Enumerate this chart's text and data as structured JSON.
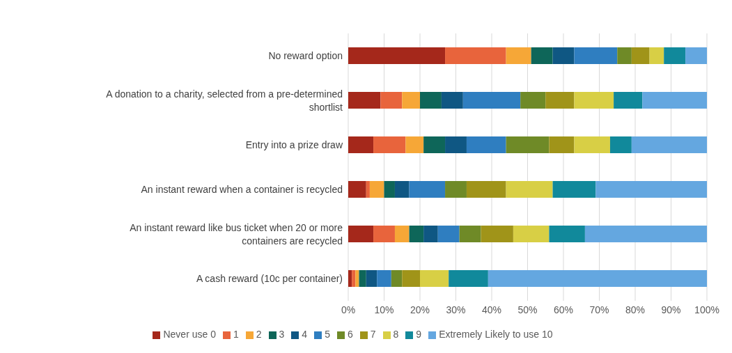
{
  "chart_data": {
    "type": "bar",
    "orientation": "horizontal",
    "stacked": true,
    "categories": [
      "No reward option",
      "A donation to a charity, selected from a pre-determined shortlist",
      "Entry into a prize draw",
      "An instant reward when a container is recycled",
      "An instant reward like bus ticket when 20 or more containers are recycled",
      "A cash reward (10c per container)"
    ],
    "series": [
      {
        "name": "Never use 0",
        "color": "#a5281b",
        "values": [
          27,
          9,
          7,
          5,
          7,
          1
        ]
      },
      {
        "name": "1",
        "color": "#e8643c",
        "values": [
          17,
          6,
          9,
          1,
          6,
          1
        ]
      },
      {
        "name": "2",
        "color": "#f6a737",
        "values": [
          7,
          5,
          5,
          4,
          4,
          1
        ]
      },
      {
        "name": "3",
        "color": "#0e6659",
        "values": [
          6,
          6,
          6,
          3,
          4,
          2
        ]
      },
      {
        "name": "4",
        "color": "#0f5783",
        "values": [
          6,
          6,
          6,
          4,
          4,
          3
        ]
      },
      {
        "name": "5",
        "color": "#2f7ec0",
        "values": [
          12,
          16,
          11,
          10,
          6,
          4
        ]
      },
      {
        "name": "6",
        "color": "#6f8a27",
        "values": [
          4,
          7,
          12,
          6,
          6,
          3
        ]
      },
      {
        "name": "7",
        "color": "#a09419",
        "values": [
          5,
          8,
          7,
          11,
          9,
          5
        ]
      },
      {
        "name": "8",
        "color": "#d8cf45",
        "values": [
          4,
          11,
          10,
          13,
          10,
          8
        ]
      },
      {
        "name": "9",
        "color": "#11899b",
        "values": [
          6,
          8,
          6,
          12,
          10,
          11
        ]
      },
      {
        "name": "Extremely Likely to use 10",
        "color": "#64a7e0",
        "values": [
          6,
          18,
          21,
          31,
          34,
          61
        ]
      }
    ],
    "xlim": [
      0,
      100
    ],
    "xticks": [
      {
        "value": 0,
        "label": "0%"
      },
      {
        "value": 10,
        "label": "10%"
      },
      {
        "value": 20,
        "label": "20%"
      },
      {
        "value": 30,
        "label": "30%"
      },
      {
        "value": 40,
        "label": "40%"
      },
      {
        "value": 50,
        "label": "50%"
      },
      {
        "value": 60,
        "label": "60%"
      },
      {
        "value": 70,
        "label": "70%"
      },
      {
        "value": 80,
        "label": "80%"
      },
      {
        "value": 90,
        "label": "90%"
      },
      {
        "value": 100,
        "label": "100%"
      }
    ],
    "grid": "x",
    "legend": "bottom"
  }
}
